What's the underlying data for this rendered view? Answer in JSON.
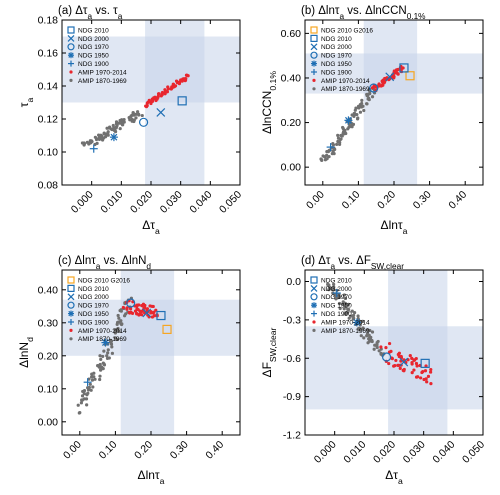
{
  "colors": {
    "ndg": "#1f6fb4",
    "g2016": "#f6a623",
    "amip_recent": "#e8262e",
    "amip_early": "#707070",
    "shade": "#c6d4ea"
  },
  "chart_data": [
    {
      "type": "scatter",
      "id": "a",
      "title_parts": [
        "(a) Δτ",
        "a",
        " vs. τ",
        "a"
      ],
      "xlabel_parts": [
        "Δτ",
        "a"
      ],
      "ylabel_parts": [
        "τ",
        "a"
      ],
      "xlim": [
        -0.01,
        0.05
      ],
      "ylim": [
        0.08,
        0.18
      ],
      "xticks": [
        "0.000",
        "0.010",
        "0.020",
        "0.030",
        "0.040",
        "0.050"
      ],
      "yticks": [
        "0.08",
        "0.10",
        "0.12",
        "0.14",
        "0.16",
        "0.18"
      ],
      "xtick_values": [
        0,
        0.01,
        0.02,
        0.03,
        0.04,
        0.05
      ],
      "ytick_values": [
        0.08,
        0.1,
        0.12,
        0.14,
        0.16,
        0.18
      ],
      "shade_x": [
        0.018,
        0.038
      ],
      "shade_y": [
        0.13,
        0.17
      ],
      "legend": [
        {
          "marker": "square",
          "color": "ndg",
          "label": "NDG 2010"
        },
        {
          "marker": "x",
          "color": "ndg",
          "label": "NDG 2000"
        },
        {
          "marker": "circle",
          "color": "ndg",
          "label": "NDG 1970"
        },
        {
          "marker": "asterisk",
          "color": "ndg",
          "label": "NDG 1950"
        },
        {
          "marker": "plus",
          "color": "ndg",
          "label": "NDG 1900"
        },
        {
          "marker": "dot",
          "color": "amip_recent",
          "label": "AMIP 1970-2014"
        },
        {
          "marker": "dot",
          "color": "amip_early",
          "label": "AMIP 1870-1969"
        }
      ],
      "points": [
        {
          "marker": "square",
          "color": "ndg",
          "x": 0.0305,
          "y": 0.131
        },
        {
          "marker": "x",
          "color": "ndg",
          "x": 0.0233,
          "y": 0.124
        },
        {
          "marker": "circle",
          "color": "ndg",
          "x": 0.0175,
          "y": 0.118
        },
        {
          "marker": "asterisk",
          "color": "ndg",
          "x": 0.0075,
          "y": 0.109
        },
        {
          "marker": "plus",
          "color": "ndg",
          "x": 0.0007,
          "y": 0.102
        }
      ],
      "trail_early": {
        "x0": -0.002,
        "y0": 0.104,
        "x1": 0.016,
        "y1": 0.124,
        "n": 80,
        "spread_x": 0.0014,
        "spread_y": 0.002
      },
      "trail_recent": {
        "x0": 0.018,
        "y0": 0.128,
        "x1": 0.0325,
        "y1": 0.146,
        "n": 60,
        "spread_x": 0.0008,
        "spread_y": 0.0012
      }
    },
    {
      "type": "scatter",
      "id": "b",
      "title_parts": [
        "(b) Δlnτ",
        "a",
        " vs. ΔlnCCN",
        "0.1%"
      ],
      "xlabel_parts": [
        "Δlnτ",
        "a"
      ],
      "ylabel_parts": [
        "ΔlnCCN",
        "0.1%"
      ],
      "xlim": [
        -0.05,
        0.45
      ],
      "ylim": [
        -0.08,
        0.66
      ],
      "xticks": [
        "0.00",
        "0.10",
        "0.20",
        "0.30",
        "0.40"
      ],
      "yticks": [
        "0.00",
        "0.20",
        "0.40",
        "0.60"
      ],
      "xtick_values": [
        0,
        0.1,
        0.2,
        0.3,
        0.4
      ],
      "ytick_values": [
        0,
        0.2,
        0.4,
        0.6
      ],
      "shade_x": [
        0.115,
        0.265
      ],
      "shade_y": [
        0.33,
        0.51
      ],
      "legend": [
        {
          "marker": "square",
          "color": "g2016",
          "label": "NDG 2010 G2016"
        },
        {
          "marker": "square",
          "color": "ndg",
          "label": "NDG 2010"
        },
        {
          "marker": "x",
          "color": "ndg",
          "label": "NDG 2000"
        },
        {
          "marker": "circle",
          "color": "ndg",
          "label": "NDG 1970"
        },
        {
          "marker": "asterisk",
          "color": "ndg",
          "label": "NDG 1950"
        },
        {
          "marker": "plus",
          "color": "ndg",
          "label": "NDG 1900"
        },
        {
          "marker": "dot",
          "color": "amip_recent",
          "label": "AMIP 1970-2014"
        },
        {
          "marker": "dot",
          "color": "amip_early",
          "label": "AMIP 1870-1969"
        }
      ],
      "points": [
        {
          "marker": "square",
          "color": "g2016",
          "x": 0.245,
          "y": 0.41
        },
        {
          "marker": "square",
          "color": "ndg",
          "x": 0.228,
          "y": 0.445
        },
        {
          "marker": "x",
          "color": "ndg",
          "x": 0.188,
          "y": 0.405
        },
        {
          "marker": "circle",
          "color": "ndg",
          "x": 0.143,
          "y": 0.355
        },
        {
          "marker": "asterisk",
          "color": "ndg",
          "x": 0.072,
          "y": 0.21
        },
        {
          "marker": "plus",
          "color": "ndg",
          "x": 0.022,
          "y": 0.09
        }
      ],
      "trail_early": {
        "x0": 0.0,
        "y0": 0.02,
        "x1": 0.14,
        "y1": 0.35,
        "n": 90,
        "spread_x": 0.012,
        "spread_y": 0.015
      },
      "trail_recent": {
        "x0": 0.145,
        "y0": 0.35,
        "x1": 0.225,
        "y1": 0.445,
        "n": 50,
        "spread_x": 0.006,
        "spread_y": 0.01
      }
    },
    {
      "type": "scatter",
      "id": "c",
      "title_parts": [
        "(c) Δlnτ",
        "a",
        " vs. ΔlnN",
        "d"
      ],
      "xlabel_parts": [
        "Δlnτ",
        "a"
      ],
      "ylabel_parts": [
        "ΔlnN",
        "d"
      ],
      "xlim": [
        -0.05,
        0.45
      ],
      "ylim": [
        -0.04,
        0.46
      ],
      "xticks": [
        "0.00",
        "0.10",
        "0.20",
        "0.30",
        "0.40"
      ],
      "yticks": [
        "0.00",
        "0.10",
        "0.20",
        "0.30",
        "0.40"
      ],
      "xtick_values": [
        0,
        0.1,
        0.2,
        0.3,
        0.4
      ],
      "ytick_values": [
        0,
        0.1,
        0.2,
        0.3,
        0.4
      ],
      "shade_x": [
        0.115,
        0.265
      ],
      "shade_y": [
        0.2,
        0.37
      ],
      "legend": [
        {
          "marker": "square",
          "color": "g2016",
          "label": "NDG 2010 G2016"
        },
        {
          "marker": "square",
          "color": "ndg",
          "label": "NDG 2010"
        },
        {
          "marker": "x",
          "color": "ndg",
          "label": "NDG 2000"
        },
        {
          "marker": "circle",
          "color": "ndg",
          "label": "NDG 1970"
        },
        {
          "marker": "asterisk",
          "color": "ndg",
          "label": "NDG 1950"
        },
        {
          "marker": "plus",
          "color": "ndg",
          "label": "NDG 1900"
        },
        {
          "marker": "dot",
          "color": "amip_recent",
          "label": "AMIP 1970-2014"
        },
        {
          "marker": "dot",
          "color": "amip_early",
          "label": "AMIP 1870-1969"
        }
      ],
      "points": [
        {
          "marker": "square",
          "color": "g2016",
          "x": 0.245,
          "y": 0.28
        },
        {
          "marker": "square",
          "color": "ndg",
          "x": 0.228,
          "y": 0.322
        },
        {
          "marker": "x",
          "color": "ndg",
          "x": 0.188,
          "y": 0.33
        },
        {
          "marker": "circle",
          "color": "ndg",
          "x": 0.143,
          "y": 0.36
        },
        {
          "marker": "asterisk",
          "color": "ndg",
          "x": 0.072,
          "y": 0.24
        },
        {
          "marker": "plus",
          "color": "ndg",
          "x": 0.022,
          "y": 0.12
        }
      ],
      "trail_early": {
        "x0": 0.0,
        "y0": 0.04,
        "x1": 0.14,
        "y1": 0.36,
        "n": 90,
        "spread_x": 0.012,
        "spread_y": 0.018
      },
      "trail_recent": {
        "x0": 0.13,
        "y0": 0.35,
        "x1": 0.215,
        "y1": 0.33,
        "n": 50,
        "spread_x": 0.012,
        "spread_y": 0.02
      }
    },
    {
      "type": "scatter",
      "id": "d",
      "title_parts": [
        "(d) Δτ",
        "a",
        " vs. ΔF",
        "SW,clear"
      ],
      "xlabel_parts": [
        "Δτ",
        "a"
      ],
      "ylabel_parts": [
        "ΔF",
        "SW,clear"
      ],
      "xlim": [
        -0.01,
        0.05
      ],
      "ylim": [
        -1.2,
        0.09
      ],
      "xticks": [
        "0.000",
        "0.010",
        "0.020",
        "0.030",
        "0.040",
        "0.050"
      ],
      "yticks": [
        "0.0",
        "-0.3",
        "-0.6",
        "-0.9",
        "-1.2"
      ],
      "xtick_values": [
        0,
        0.01,
        0.02,
        0.03,
        0.04,
        0.05
      ],
      "ytick_values": [
        0,
        -0.3,
        -0.6,
        -0.9,
        -1.2
      ],
      "shade_x": [
        0.018,
        0.038
      ],
      "shade_y": [
        -1.0,
        -0.35
      ],
      "legend": [
        {
          "marker": "square",
          "color": "ndg",
          "label": "NDG 2010"
        },
        {
          "marker": "x",
          "color": "ndg",
          "label": "NDG 2000"
        },
        {
          "marker": "circle",
          "color": "ndg",
          "label": "NDG 1970"
        },
        {
          "marker": "asterisk",
          "color": "ndg",
          "label": "NDG 1950"
        },
        {
          "marker": "plus",
          "color": "ndg",
          "label": "NDG 1900"
        },
        {
          "marker": "dot",
          "color": "amip_recent",
          "label": "AMIP 1970-2014"
        },
        {
          "marker": "dot",
          "color": "amip_early",
          "label": "AMIP 1870-1969"
        }
      ],
      "points": [
        {
          "marker": "square",
          "color": "ndg",
          "x": 0.0305,
          "y": -0.64
        },
        {
          "marker": "x",
          "color": "ndg",
          "x": 0.0233,
          "y": -0.63
        },
        {
          "marker": "circle",
          "color": "ndg",
          "x": 0.0175,
          "y": -0.59
        },
        {
          "marker": "asterisk",
          "color": "ndg",
          "x": 0.0075,
          "y": -0.32
        },
        {
          "marker": "plus",
          "color": "ndg",
          "x": 0.0007,
          "y": -0.09
        }
      ],
      "trail_early": {
        "x0": -0.002,
        "y0": -0.02,
        "x1": 0.016,
        "y1": -0.56,
        "n": 90,
        "spread_x": 0.0014,
        "spread_y": 0.04
      },
      "trail_recent": {
        "x0": 0.017,
        "y0": -0.55,
        "x1": 0.0325,
        "y1": -0.75,
        "n": 55,
        "spread_x": 0.002,
        "spread_y": 0.08
      }
    }
  ]
}
